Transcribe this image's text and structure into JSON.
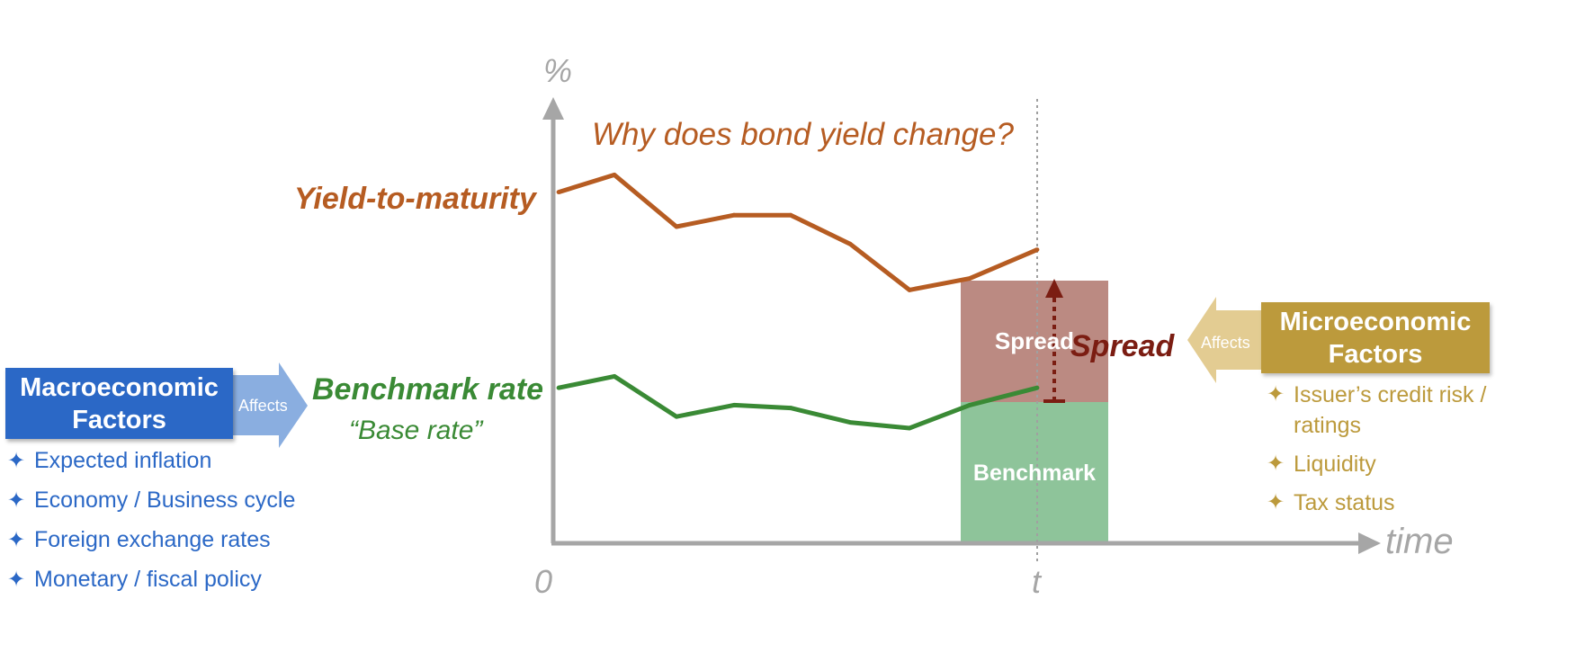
{
  "title": "Why does bond yield change?",
  "y_axis_label": "%",
  "x_axis_label": "time",
  "x_origin_label": "0",
  "x_marker_label": "t",
  "chart_data": {
    "type": "line",
    "title": "Why does bond yield change?",
    "xlabel": "time",
    "ylabel": "%",
    "grid": false,
    "series": [
      {
        "name": "Yield-to-maturity",
        "color": "#b65c22",
        "values": [
          6.1,
          6.4,
          5.5,
          5.7,
          5.7,
          5.2,
          4.4,
          4.6,
          5.1
        ]
      },
      {
        "name": "Benchmark rate",
        "color": "#3a8a35",
        "values": [
          2.7,
          2.9,
          2.2,
          2.4,
          2.35,
          2.1,
          2.0,
          2.4,
          2.7
        ]
      }
    ]
  },
  "labels": {
    "ytm": "Yield-to-maturity",
    "benchmark": "Benchmark rate",
    "base_rate": "“Base rate”",
    "spread_bar": "Spread",
    "benchmark_bar": "Benchmark",
    "spread_arrow": "Spread"
  },
  "macro": {
    "title_line1": "Macroeconomic",
    "title_line2": "Factors",
    "affects": "Affects",
    "color": "#2b68c6",
    "items": [
      "Expected inflation",
      "Economy / Business cycle",
      "Foreign exchange rates",
      "Monetary / fiscal policy"
    ]
  },
  "micro": {
    "title_line1": "Microeconomic",
    "title_line2": "Factors",
    "affects": "Affects",
    "color": "#bc9a3c",
    "items": [
      "Issuer’s credit risk / ratings",
      "Liquidity",
      "Tax status"
    ]
  },
  "bullet_symbol": "✦"
}
